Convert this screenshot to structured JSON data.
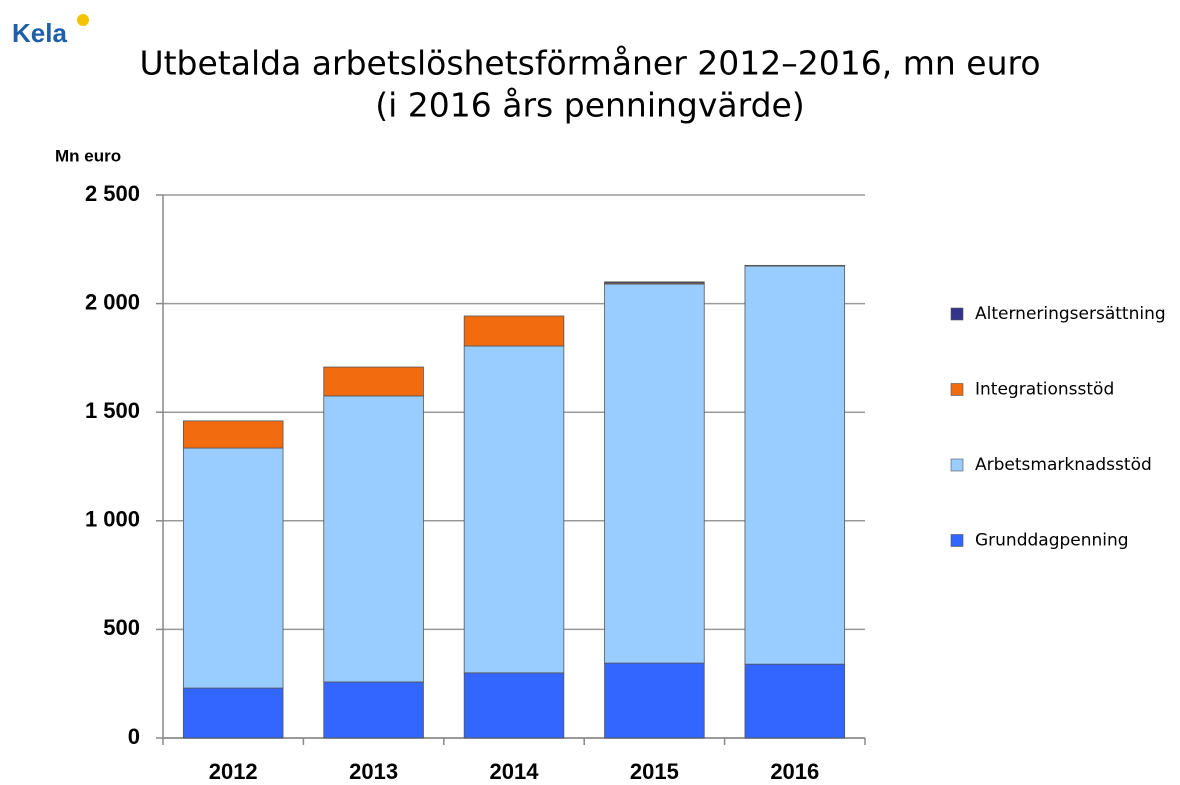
{
  "logo": "Kela",
  "chart_data": {
    "type": "stacked-bar",
    "title": "Utbetalda arbetslöshetsförmåner 2012–2016, mn euro",
    "subtitle": "(i 2016 års penningvärde)",
    "y_label": "Mn euro",
    "categories": [
      "2012",
      "2013",
      "2014",
      "2015",
      "2016"
    ],
    "series": [
      {
        "name": "Grunddagpenning",
        "color": "#3366ff",
        "values": [
          230,
          258,
          300,
          345,
          340
        ]
      },
      {
        "name": "Arbetsmarknadsstöd",
        "color": "#99ccff",
        "values": [
          1105,
          1317,
          1505,
          1745,
          1833
        ]
      },
      {
        "name": "Integrationsstöd",
        "color": "#f26b0f",
        "values": [
          125,
          133,
          138,
          5,
          0
        ]
      },
      {
        "name": "Alterneringsersättning",
        "color": "#33338c",
        "values": [
          0,
          0,
          0,
          5,
          3
        ]
      }
    ],
    "ylim": [
      0,
      2500
    ],
    "yticks": [
      0,
      500,
      {
        "value": 1000,
        "label": "1 000"
      },
      {
        "value": 1500,
        "label": "1 500"
      },
      {
        "value": 2000,
        "label": "2 000"
      },
      {
        "value": 2500,
        "label": "2 500"
      }
    ],
    "grid": true,
    "legend": "right"
  }
}
